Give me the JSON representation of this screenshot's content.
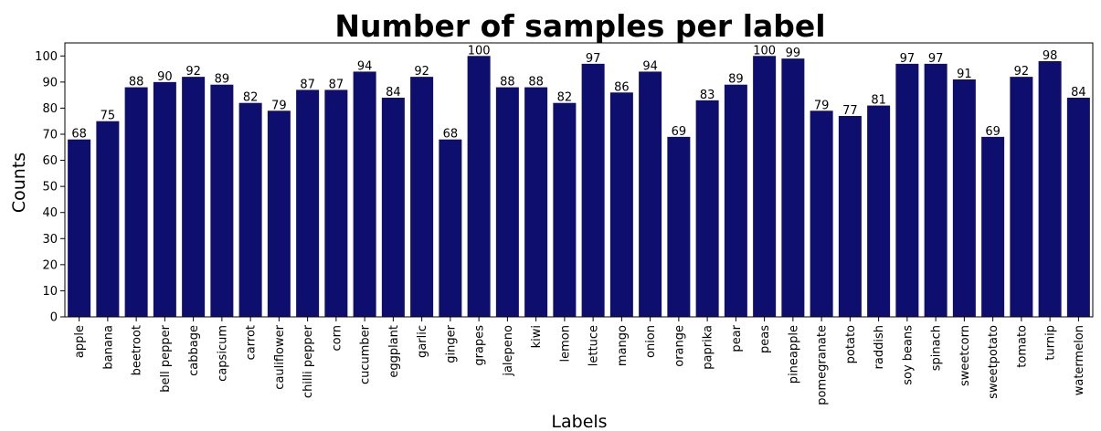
{
  "chart_data": {
    "type": "bar",
    "title": "Number of samples per label",
    "xlabel": "Labels",
    "ylabel": "Counts",
    "ylim": [
      0,
      105
    ],
    "yticks": [
      0,
      10,
      20,
      30,
      40,
      50,
      60,
      70,
      80,
      90,
      100
    ],
    "grid": false,
    "bar_color": "#0e0e6e",
    "categories": [
      "apple",
      "banana",
      "beetroot",
      "bell pepper",
      "cabbage",
      "capsicum",
      "carrot",
      "cauliflower",
      "chilli pepper",
      "corn",
      "cucumber",
      "eggplant",
      "garlic",
      "ginger",
      "grapes",
      "jalepeno",
      "kiwi",
      "lemon",
      "lettuce",
      "mango",
      "onion",
      "orange",
      "paprika",
      "pear",
      "peas",
      "pineapple",
      "pomegranate",
      "potato",
      "raddish",
      "soy beans",
      "spinach",
      "sweetcorn",
      "sweetpotato",
      "tomato",
      "turnip",
      "watermelon"
    ],
    "values": [
      68,
      75,
      88,
      90,
      92,
      89,
      82,
      79,
      87,
      87,
      94,
      84,
      92,
      68,
      100,
      88,
      88,
      82,
      97,
      86,
      94,
      69,
      83,
      89,
      100,
      99,
      79,
      77,
      81,
      97,
      97,
      91,
      69,
      92,
      98,
      84
    ]
  }
}
